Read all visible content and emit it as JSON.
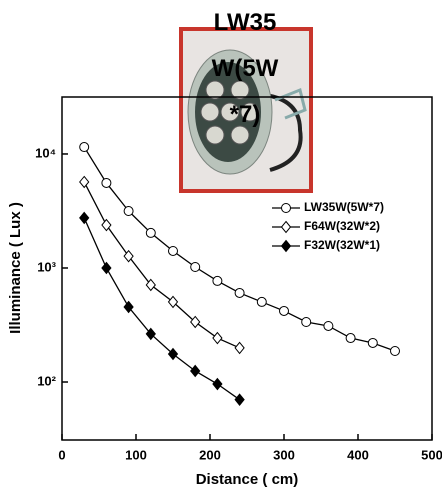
{
  "chart_data": {
    "type": "line",
    "title": "LW35W(5W*7)",
    "x_label": "Distance ( cm)",
    "y_label": "Illuminance ( Lux )",
    "xlim": [
      0,
      500
    ],
    "xticks": [
      0,
      100,
      200,
      300,
      400,
      500
    ],
    "ylim": [
      31,
      31600
    ],
    "log_y": true,
    "yticks": [
      {
        "value": 100,
        "label": "10²"
      },
      {
        "value": 1000,
        "label": "10³"
      },
      {
        "value": 10000,
        "label": "10⁴"
      }
    ],
    "legend": "right",
    "series": [
      {
        "name": "LW35W(5W*7)",
        "color": "#000000",
        "marker": "circle",
        "filled": false,
        "x": [
          30,
          60,
          90,
          120,
          150,
          180,
          210,
          240,
          270,
          300,
          330,
          360,
          390,
          420,
          450
        ],
        "values": [
          11500,
          5570,
          3160,
          2030,
          1410,
          1020,
          770,
          604,
          504,
          420,
          336,
          310,
          243,
          220,
          187
        ]
      },
      {
        "name": "F64W(32W*2)",
        "color": "#000000",
        "marker": "diamond",
        "filled": false,
        "x": [
          30,
          60,
          90,
          120,
          150,
          180,
          210,
          240
        ],
        "values": [
          5680,
          2380,
          1270,
          710,
          504,
          336,
          243,
          199
        ]
      },
      {
        "name": "F32W(32W*1)",
        "color": "#000000",
        "marker": "diamond",
        "filled": true,
        "x": [
          30,
          60,
          90,
          120,
          150,
          180,
          210,
          240
        ],
        "values": [
          2750,
          1000,
          455,
          264,
          176,
          125,
          96,
          70
        ]
      }
    ]
  }
}
